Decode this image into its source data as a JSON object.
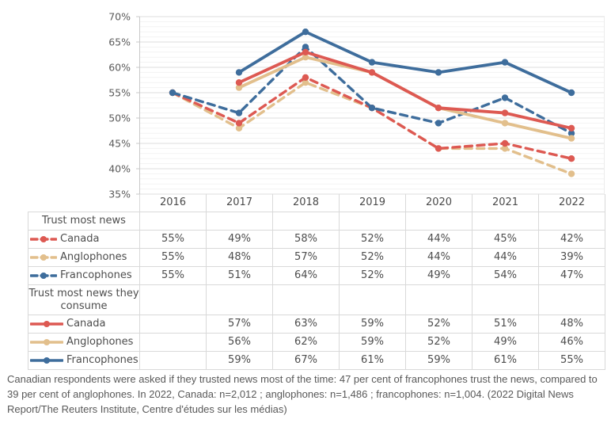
{
  "chart_data": {
    "type": "line",
    "x_labels": [
      "2016",
      "2017",
      "2018",
      "2019",
      "2020",
      "2021",
      "2022"
    ],
    "ylim": [
      35,
      70
    ],
    "ytick_step": 5,
    "ytick_labels": [
      "35%",
      "40%",
      "45%",
      "50%",
      "55%",
      "60%",
      "65%",
      "70%"
    ],
    "grid": "horizontal major every 5% with minor lines every 1%",
    "legend_position": "table rows at left of data table",
    "value_suffix": "%",
    "series": [
      {
        "name": "Anglophones",
        "group": "Trust most news",
        "style": "dashed",
        "color": "#e2bf8c",
        "values": [
          55,
          48,
          57,
          52,
          44,
          44,
          39
        ]
      },
      {
        "name": "Canada",
        "group": "Trust most news",
        "style": "dashed",
        "color": "#dd5952",
        "values": [
          55,
          49,
          58,
          52,
          44,
          45,
          42
        ]
      },
      {
        "name": "Francophones",
        "group": "Trust most news",
        "style": "dashed",
        "color": "#3e6d9c",
        "values": [
          55,
          51,
          64,
          52,
          49,
          54,
          47
        ]
      },
      {
        "name": "Anglophones",
        "group": "Trust most news they consume",
        "style": "solid",
        "color": "#e2bf8c",
        "values": [
          null,
          56,
          62,
          59,
          52,
          49,
          46
        ]
      },
      {
        "name": "Canada",
        "group": "Trust most news they consume",
        "style": "solid",
        "color": "#dd5952",
        "values": [
          null,
          57,
          63,
          59,
          52,
          51,
          48
        ]
      },
      {
        "name": "Francophones",
        "group": "Trust most news they consume",
        "style": "solid",
        "color": "#3e6d9c",
        "values": [
          null,
          59,
          67,
          61,
          59,
          61,
          55
        ]
      }
    ]
  },
  "table": {
    "group1_label": "Trust most news",
    "group2_label": "Trust most news they consume",
    "row_order_group1": [
      "Canada",
      "Anglophones",
      "Francophones"
    ],
    "row_order_group2": [
      "Canada",
      "Anglophones",
      "Francophones"
    ]
  },
  "caption": {
    "text": "Canadian respondents were asked if they trusted news most of the time: 47 per cent of francophones trust the news, compared to 39 per cent of anglophones. In 2022, Canada: n=2,012 ; anglophones: n=1,486 ; francophones: n=1,004. (2022 Digital News Report/The Reuters Institute, Centre d'études sur les médias)"
  },
  "colors": {
    "canada": "#dd5952",
    "anglophones": "#e2bf8c",
    "francophones": "#3e6d9c",
    "grid_major": "#dcdcdc",
    "grid_minor": "#f3f3f3",
    "axis_line": "#c9c9c9",
    "table_border": "#d9d9d9",
    "text": "#4d4d4d"
  }
}
